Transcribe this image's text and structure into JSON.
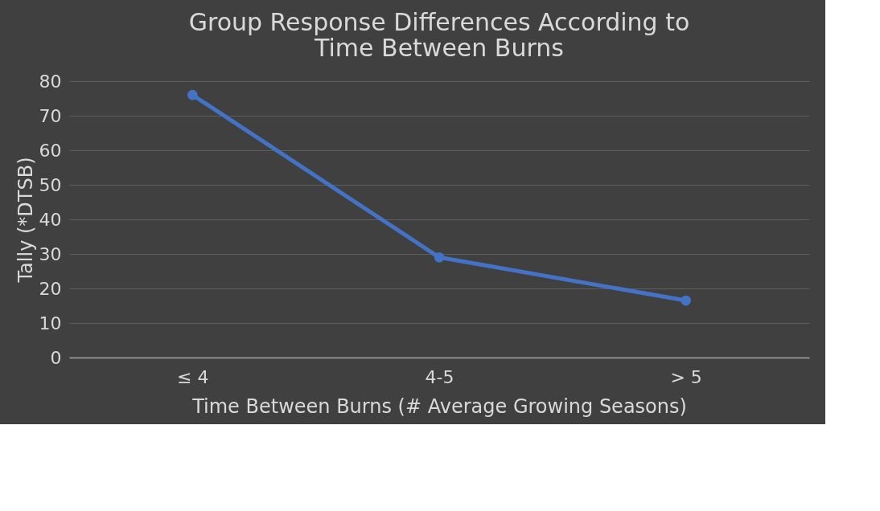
{
  "chart_data": {
    "type": "line",
    "title": [
      "Group Response Differences According to",
      "Time Between Burns"
    ],
    "xlabel": "Time Between Burns (# Average Growing Seasons)",
    "ylabel": "Tally (*DTSB)",
    "categories": [
      "≤ 4",
      "4-5",
      "> 5"
    ],
    "series": [
      {
        "color": "#4472c4",
        "values": [
          76,
          29,
          16.5
        ]
      }
    ],
    "ylim": [
      0,
      80
    ],
    "yticks": [
      0,
      10,
      20,
      30,
      40,
      50,
      60,
      70,
      80
    ],
    "grid": "y",
    "marker": "circle",
    "line_style": "solid"
  }
}
